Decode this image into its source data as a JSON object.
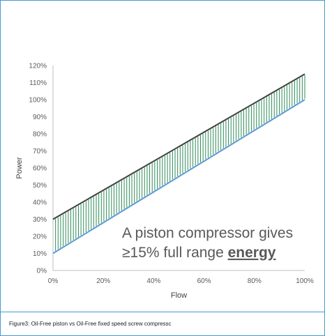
{
  "chart_data": {
    "type": "line",
    "xlabel": "Flow",
    "ylabel": "Power",
    "xlim": [
      0,
      100
    ],
    "ylim": [
      0,
      120
    ],
    "x_ticks": [
      "0%",
      "20%",
      "40%",
      "60%",
      "80%",
      "100%"
    ],
    "y_ticks": [
      "0%",
      "10%",
      "20%",
      "30%",
      "40%",
      "50%",
      "60%",
      "70%",
      "80%",
      "90%",
      "100%",
      "110%",
      "120%"
    ],
    "series": [
      {
        "x": [
          0,
          100
        ],
        "y": [
          30,
          115
        ],
        "color": "#404040"
      },
      {
        "x": [
          0,
          100
        ],
        "y": [
          10,
          100
        ],
        "color": "#5b9bd5"
      }
    ],
    "band_fill_color": "#2e8b57",
    "grid": false,
    "annotation": {
      "line1": "A piston compressor gives",
      "line2_prefix": "≥15% full range ",
      "line2_emphasis": "energy"
    }
  },
  "caption": "Figure3: Oil-Free piston vs Oil-Free fixed speed screw compressc"
}
